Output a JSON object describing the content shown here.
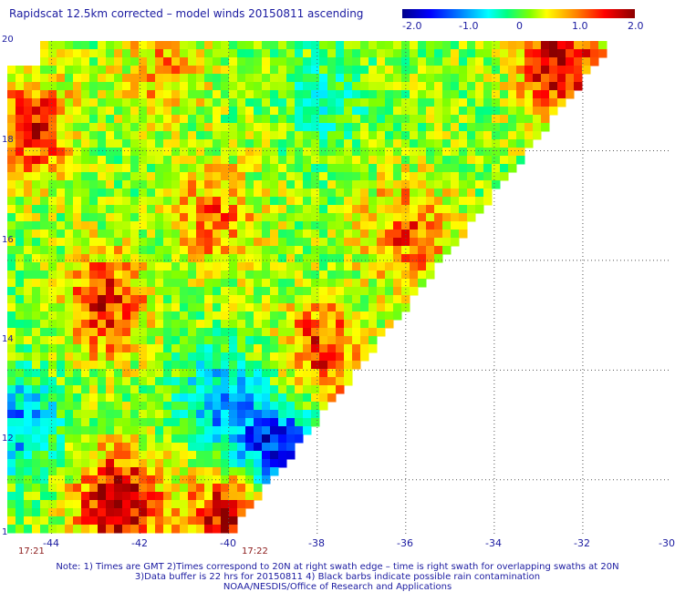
{
  "title": "Rapidscat 12.5km corrected – model winds 20150811 ascending",
  "colorbar": {
    "tick_labels": [
      "-2.0",
      "-1.0",
      "0",
      "1.0",
      "2.0"
    ],
    "colors": [
      "#00008b",
      "#0000ff",
      "#0080ff",
      "#00ffff",
      "#00ff80",
      "#80ff00",
      "#ffff00",
      "#ff8000",
      "#ff0000",
      "#8b0000"
    ]
  },
  "axes": {
    "lat_labels": [
      "20",
      "18",
      "16",
      "14",
      "12",
      "1"
    ],
    "lon_labels": [
      "-44",
      "-42",
      "-40",
      "-38",
      "-36",
      "-34",
      "-32",
      "-30"
    ]
  },
  "time_labels": [
    "17:21",
    "17:22"
  ],
  "notes": [
    "Note: 1) Times are GMT 2)Times correspond to 20N at right swath edge – time is right swath for overlapping swaths at 20N",
    "3)Data buffer is 22 hrs for 20150811 4) Black barbs indicate possible rain contamination",
    "NOAA/NESDIS/Office of Research and Applications"
  ],
  "chart_data": {
    "type": "heatmap",
    "title": "Rapidscat 12.5km corrected – model winds 20150811 ascending",
    "x_range": [
      -45,
      -30
    ],
    "y_range": [
      11,
      20
    ],
    "value_range": [
      -2.0,
      2.0
    ],
    "grid": true,
    "regions": [
      {
        "center": [
          -32.5,
          19.6
        ],
        "value": 1.6
      },
      {
        "center": [
          -44.5,
          18.4
        ],
        "value": 1.3
      },
      {
        "center": [
          -42.8,
          15.2
        ],
        "value": 1.3
      },
      {
        "center": [
          -40.3,
          16.8
        ],
        "value": 0.9
      },
      {
        "center": [
          -37.9,
          14.3
        ],
        "value": 1.2
      },
      {
        "center": [
          -36.0,
          16.5
        ],
        "value": 1.0
      },
      {
        "center": [
          -42.5,
          11.6
        ],
        "value": 1.8
      },
      {
        "center": [
          -40.0,
          11.3
        ],
        "value": 1.6
      },
      {
        "center": [
          -44.7,
          13.0
        ],
        "value": -1.2
      },
      {
        "center": [
          -38.7,
          12.5
        ],
        "value": -1.3
      },
      {
        "center": [
          -40.3,
          13.5
        ],
        "value": -0.9
      },
      {
        "center": [
          -41.5,
          19.5
        ],
        "value": 0.7
      },
      {
        "center": [
          -37.8,
          18.9
        ],
        "value": -0.6
      },
      {
        "center": [
          -39.5,
          12.8
        ],
        "value": -0.8
      }
    ]
  }
}
